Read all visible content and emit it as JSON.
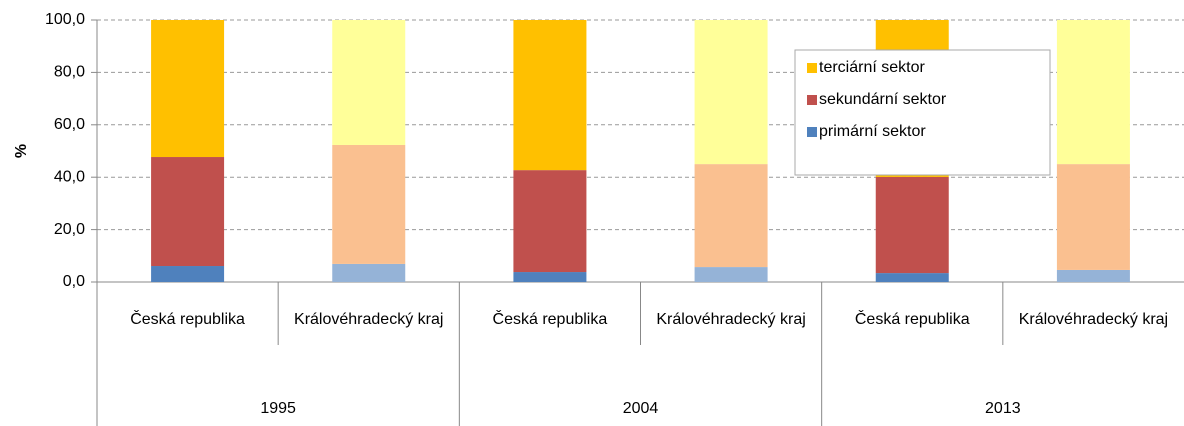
{
  "chart_data": {
    "type": "stacked_bar",
    "ylabel": "%",
    "categories": [
      "Česká republika",
      "Královéhradecký kraj",
      "Česká republika",
      "Královéhradecký kraj",
      "Česká republika",
      "Královéhradecký kraj"
    ],
    "group_labels": [
      "1995",
      "2004",
      "2013"
    ],
    "series": [
      {
        "name": "primární sektor",
        "color": "#4f81bd",
        "colors": [
          "#4f81bd",
          "#95b3d7",
          "#4f81bd",
          "#95b3d7",
          "#4f81bd",
          "#95b3d7"
        ],
        "values": [
          6.1,
          6.9,
          3.8,
          5.7,
          3.4,
          4.6
        ]
      },
      {
        "name": "sekundární sektor",
        "color": "#c0504d",
        "colors": [
          "#c0504d",
          "#fac090",
          "#c0504d",
          "#fac090",
          "#c0504d",
          "#fac090"
        ],
        "values": [
          41.6,
          45.4,
          38.9,
          39.3,
          36.7,
          40.4
        ]
      },
      {
        "name": "terciární sektor",
        "color": "#ffc000",
        "colors": [
          "#ffc000",
          "#ffff99",
          "#ffc000",
          "#ffff99",
          "#ffc000",
          "#ffff99"
        ],
        "values": [
          52.3,
          47.7,
          57.3,
          55.0,
          59.9,
          55.0
        ]
      }
    ],
    "ylim": [
      0,
      100
    ],
    "yticks": [
      {
        "value": 0,
        "label": "0,0"
      },
      {
        "value": 20,
        "label": "20,0"
      },
      {
        "value": 40,
        "label": "40,0"
      },
      {
        "value": 60,
        "label": "60,0"
      },
      {
        "value": 80,
        "label": "80,0"
      },
      {
        "value": 100,
        "label": "100,0"
      }
    ],
    "grid": true,
    "legend": "upper right"
  }
}
